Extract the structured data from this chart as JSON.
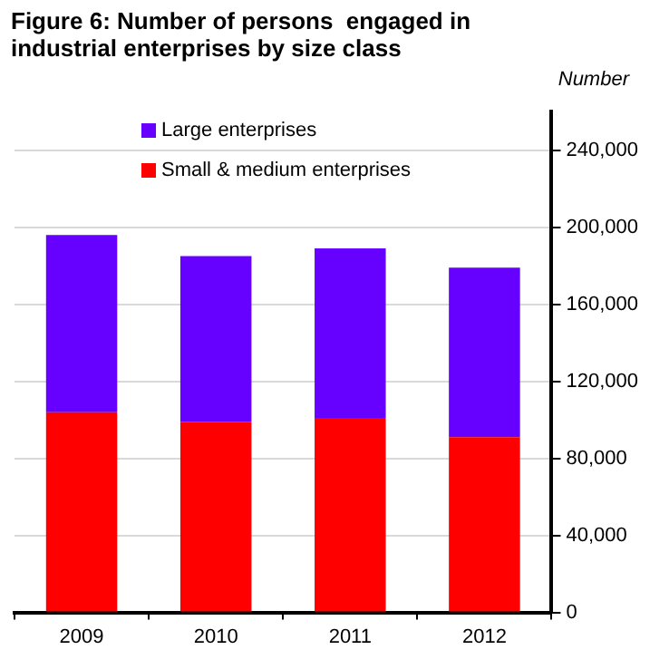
{
  "chart_data": {
    "type": "bar",
    "title": "Figure 6: Number of persons  engaged in industrial enterprises by size class",
    "ylabel": "Number",
    "categories": [
      "2009",
      "2010",
      "2011",
      "2012"
    ],
    "stacked": true,
    "series": [
      {
        "name": "Small & medium enterprises",
        "color": "#ff0000",
        "values": [
          104000,
          99000,
          101000,
          91000
        ]
      },
      {
        "name": "Large enterprises",
        "color": "#6600ff",
        "values": [
          92000,
          86000,
          88000,
          88000
        ]
      }
    ],
    "ylim": [
      0,
      260000
    ],
    "yticks": [
      0,
      {
        "value": 40000,
        "label": "40,000"
      },
      {
        "value": 80000,
        "label": "80,000"
      },
      {
        "value": 120000,
        "label": "120,000"
      },
      {
        "value": 160000,
        "label": "160,000"
      },
      {
        "value": 200000,
        "label": "200,000"
      },
      {
        "value": 240000,
        "label": "240,000"
      }
    ],
    "grid": "y",
    "legend": "top left"
  }
}
